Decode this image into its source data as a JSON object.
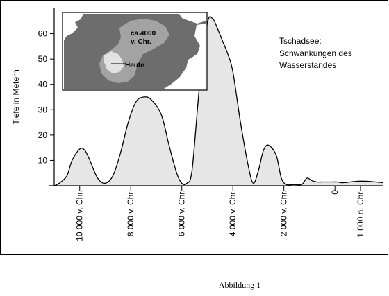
{
  "chart_data": {
    "type": "area",
    "title": "Tschadsee:",
    "subtitle": "Schwankungen des",
    "subtitle2": "Wasserstandes",
    "ylabel": "Tiefe in Metern",
    "xlabel": "",
    "ylim": [
      0,
      70
    ],
    "y_ticks": [
      10,
      20,
      30,
      40,
      50,
      60
    ],
    "x_ticks": [
      {
        "label": "10 000 v. Chr.",
        "year": -10000
      },
      {
        "label": "8 000 v. Chr.",
        "year": -8000
      },
      {
        "label": "6 000 v. Chr.",
        "year": -6000
      },
      {
        "label": "4 000 v. Chr.",
        "year": -4000
      },
      {
        "label": "2 000 v. Chr.",
        "year": -2000
      },
      {
        "label": "0",
        "year": 0
      },
      {
        "label": "1 000 n. Chr.",
        "year": 1000
      }
    ],
    "xlim": [
      -11000,
      1900
    ],
    "x": [
      -11000,
      -10800,
      -10500,
      -10300,
      -10000,
      -9800,
      -9600,
      -9300,
      -9000,
      -8700,
      -8400,
      -8100,
      -7800,
      -7500,
      -7200,
      -6800,
      -6500,
      -6200,
      -6000,
      -5800,
      -5600,
      -5300,
      -5000,
      -4800,
      -4600,
      -4400,
      -4200,
      -4000,
      -3700,
      -3400,
      -3200,
      -3000,
      -2800,
      -2600,
      -2300,
      -2100,
      -1900,
      -1600,
      -1300,
      -1100,
      -900,
      -700,
      -500,
      -300,
      -100,
      100,
      300,
      600,
      900,
      1200,
      1500,
      1900
    ],
    "values": [
      0,
      1,
      4,
      10,
      14.5,
      14,
      10,
      3,
      1,
      4,
      13,
      25,
      33,
      35,
      34,
      28,
      16,
      5,
      1,
      1,
      6,
      40,
      64,
      66,
      62,
      57,
      52,
      45,
      25,
      8,
      1,
      6,
      14,
      16,
      12,
      3,
      0.5,
      0.5,
      0.5,
      3,
      2,
      1.5,
      1.5,
      1.5,
      1.5,
      1.5,
      1.2,
      1.5,
      1.8,
      1.8,
      1.6,
      1.2
    ],
    "grid": false,
    "legend": "none",
    "fill_color": "#e6e6e6",
    "line_color": "#000000",
    "inset": {
      "labels": [
        "ca.4000",
        "v. Chr.",
        "Heute"
      ]
    }
  },
  "caption": "Abbildung 1"
}
